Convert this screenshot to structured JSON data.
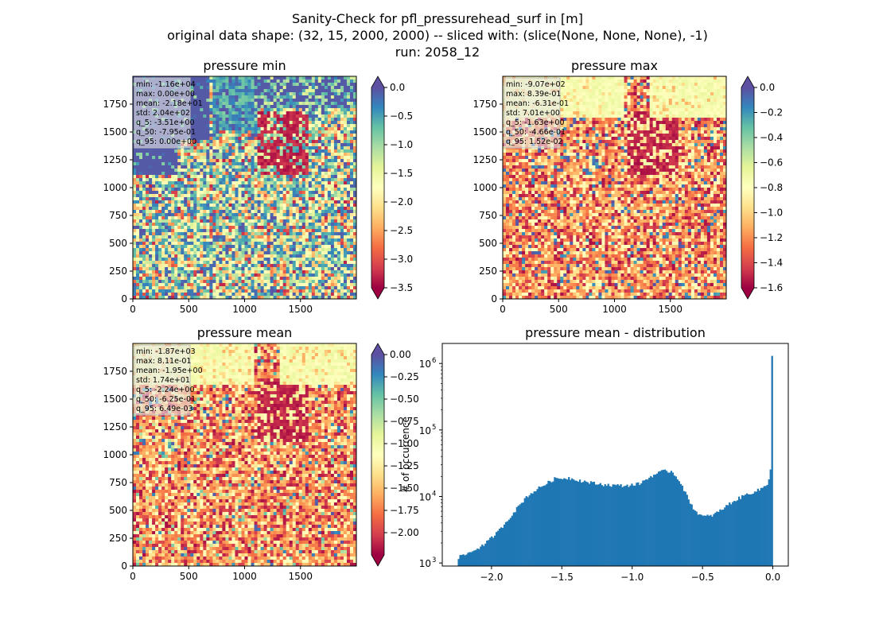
{
  "suptitle": {
    "line1": "Sanity-Check for pfl_pressurehead_surf in [m]",
    "line2": "original data shape: (32, 15, 2000, 2000) -- sliced with: (slice(None, None, None), -1)",
    "line3": "run: 2058_12"
  },
  "chart_data": [
    {
      "type": "heatmap",
      "title": "pressure min",
      "colormap": "Spectral",
      "xlim": [
        0,
        2000
      ],
      "ylim": [
        0,
        2000
      ],
      "xticks": [
        "0",
        "500",
        "1000",
        "1500"
      ],
      "yticks": [
        "0",
        "250",
        "500",
        "750",
        "1000",
        "1250",
        "1500",
        "1750"
      ],
      "colorbar": {
        "min": -3.5,
        "max": 0.0,
        "extend": "both",
        "ticks": [
          "0.0",
          "−0.5",
          "−1.0",
          "−1.5",
          "−2.0",
          "−2.5",
          "−3.0",
          "−3.5"
        ]
      },
      "stats": [
        "min: -1.16e+04",
        "max: 0.00e+00",
        "mean: -2.18e+01",
        "std: 2.04e+02",
        "q_5: -3.51e+00",
        "q_50: -7.95e-01",
        "q_95: 0.00e+00"
      ]
    },
    {
      "type": "heatmap",
      "title": "pressure max",
      "colormap": "Spectral",
      "xlim": [
        0,
        2000
      ],
      "ylim": [
        0,
        2000
      ],
      "xticks": [
        "0",
        "500",
        "1000",
        "1500"
      ],
      "yticks": [
        "0",
        "250",
        "500",
        "750",
        "1000",
        "1250",
        "1500",
        "1750"
      ],
      "colorbar": {
        "min": -1.6,
        "max": 0.0,
        "extend": "both",
        "ticks": [
          "0.0",
          "−0.2",
          "−0.4",
          "−0.6",
          "−0.8",
          "−1.0",
          "−1.2",
          "−1.4",
          "−1.6"
        ]
      },
      "stats": [
        "min: -9.07e+02",
        "max: 8.39e-01",
        "mean: -6.31e-01",
        "std: 7.01e+00",
        "q_5: -1.63e+00",
        "q_50: -4.66e-01",
        "q_95: 1.52e-02"
      ]
    },
    {
      "type": "heatmap",
      "title": "pressure mean",
      "colormap": "Spectral",
      "xlim": [
        0,
        2000
      ],
      "ylim": [
        0,
        2000
      ],
      "xticks": [
        "0",
        "500",
        "1000",
        "1500"
      ],
      "yticks": [
        "0",
        "250",
        "500",
        "750",
        "1000",
        "1250",
        "1500",
        "1750"
      ],
      "colorbar": {
        "min": -2.25,
        "max": 0.0,
        "extend": "both",
        "ticks": [
          "0.00",
          "−0.25",
          "−0.50",
          "−0.75",
          "−1.00",
          "−1.25",
          "−1.50",
          "−1.75",
          "−2.00"
        ]
      },
      "stats": [
        "min: -1.87e+03",
        "max: 8.11e-01",
        "mean: -1.95e+00",
        "std: 1.74e+01",
        "q_5: -2.24e+00",
        "q_50: -6.25e-01",
        "q_95: 6.49e-03"
      ]
    },
    {
      "type": "bar",
      "title": "pressure mean - distribution",
      "ylabel": "# of occurrence",
      "yscale": "log",
      "color": "#1f77b4",
      "xlim": [
        -2.35,
        0.11
      ],
      "ylim": [
        900,
        2000000
      ],
      "xticks": [
        -2.0,
        -1.5,
        -1.0,
        -0.5,
        0.0
      ],
      "xtick_labels": [
        "−2.0",
        "−1.5",
        "−1.0",
        "−0.5",
        "0.0"
      ],
      "yticks": [
        1000,
        10000,
        100000,
        1000000
      ],
      "ytick_labels": [
        "10",
        "10",
        "10",
        "10"
      ],
      "ytick_exponents": [
        "3",
        "4",
        "5",
        "6"
      ],
      "bin_range": [
        -2.24,
        0.0
      ],
      "profile": [
        [
          -2.24,
          1200
        ],
        [
          -2.15,
          1450
        ],
        [
          -2.05,
          1900
        ],
        [
          -1.95,
          3000
        ],
        [
          -1.85,
          5500
        ],
        [
          -1.75,
          10000
        ],
        [
          -1.65,
          14000
        ],
        [
          -1.55,
          18500
        ],
        [
          -1.45,
          19000
        ],
        [
          -1.35,
          17000
        ],
        [
          -1.25,
          15500
        ],
        [
          -1.15,
          14800
        ],
        [
          -1.05,
          14500
        ],
        [
          -0.95,
          15500
        ],
        [
          -0.85,
          21000
        ],
        [
          -0.78,
          24000
        ],
        [
          -0.72,
          24000
        ],
        [
          -0.66,
          17000
        ],
        [
          -0.6,
          9000
        ],
        [
          -0.55,
          6000
        ],
        [
          -0.5,
          5000
        ],
        [
          -0.44,
          5100
        ],
        [
          -0.38,
          6000
        ],
        [
          -0.3,
          8000
        ],
        [
          -0.2,
          10500
        ],
        [
          -0.1,
          12500
        ],
        [
          -0.04,
          15000
        ],
        [
          -0.02,
          22000
        ],
        [
          -0.01,
          40000
        ],
        [
          0.0,
          1300000
        ]
      ]
    }
  ]
}
